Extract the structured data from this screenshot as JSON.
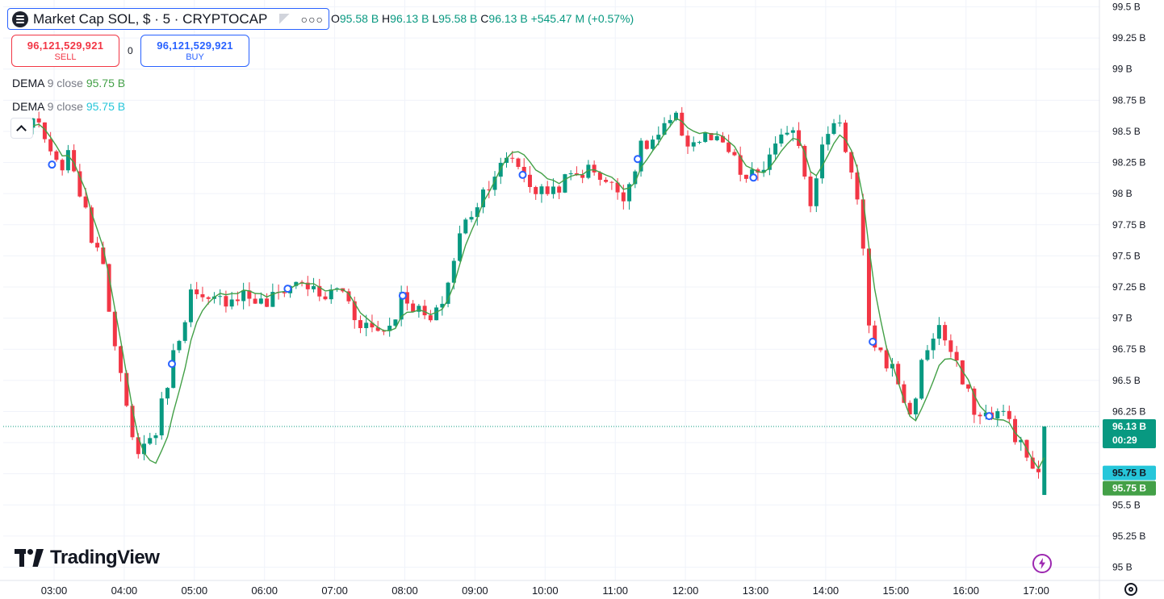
{
  "header": {
    "title": "Market Cap SOL, $ · 5 · CRYPTOCAP",
    "more_label": "○○○"
  },
  "ohlc": {
    "o_label": "O",
    "o_value": "95.58 B",
    "h_label": "H",
    "h_value": "96.13 B",
    "l_label": "L",
    "l_value": "95.58 B",
    "c_label": "C",
    "c_value": "96.13 B",
    "change": "+545.47 M (+0.57%)"
  },
  "trade": {
    "sell_price": "96,121,529,921",
    "sell_label": "SELL",
    "spread": "0",
    "buy_price": "96,121,529,921",
    "buy_label": "BUY"
  },
  "legend": [
    {
      "name": "DEMA",
      "params": "9 close",
      "value": "95.75 B",
      "color": "#43a047"
    },
    {
      "name": "DEMA",
      "params": "9 close",
      "value": "95.75 B",
      "color": "#26c6da"
    }
  ],
  "branding": {
    "logo_text": "TradingView"
  },
  "colors": {
    "up": "#089981",
    "down": "#f23645",
    "dema_line": "#43a047",
    "dema_cyan": "#26c6da",
    "accent": "#2962ff"
  },
  "chart_data": {
    "type": "candlestick",
    "interval": "5",
    "unit": "B",
    "ylim": [
      95,
      99.5
    ],
    "y_ticks": [
      "95 B",
      "95.25 B",
      "95.5 B",
      "95.75 B",
      "96 B",
      "96.25 B",
      "96.5 B",
      "96.75 B",
      "97 B",
      "97.25 B",
      "97.5 B",
      "97.75 B",
      "98 B",
      "98.25 B",
      "98.5 B",
      "98.75 B",
      "99 B",
      "99.25 B",
      "99.5 B"
    ],
    "x_ticks": [
      "03:00",
      "04:00",
      "05:00",
      "06:00",
      "07:00",
      "08:00",
      "09:00",
      "10:00",
      "11:00",
      "12:00",
      "13:00",
      "14:00",
      "15:00",
      "16:00",
      "17:00"
    ],
    "x_range_hours": [
      2.3,
      17.5
    ],
    "last_price": {
      "value": 96.13,
      "label": "96.13 B",
      "countdown": "00:29"
    },
    "dema_labels": [
      {
        "value": 95.75,
        "label": "95.75 B",
        "color": "#26c6da"
      },
      {
        "value": 95.75,
        "label": "95.75 B",
        "color": "#43a047"
      }
    ],
    "event_markers_hours": [
      2.97,
      4.68,
      6.33,
      7.97,
      9.68,
      11.32,
      12.97,
      14.67,
      16.33
    ],
    "anchors": [
      [
        2.45,
        98.5
      ],
      [
        2.8,
        98.55
      ],
      [
        3.0,
        98.2
      ],
      [
        3.25,
        98.3
      ],
      [
        3.5,
        97.7
      ],
      [
        3.7,
        97.5
      ],
      [
        3.85,
        96.8
      ],
      [
        4.0,
        96.35
      ],
      [
        4.12,
        96.0
      ],
      [
        4.25,
        95.95
      ],
      [
        4.45,
        96.1
      ],
      [
        4.7,
        96.7
      ],
      [
        4.95,
        97.2
      ],
      [
        5.15,
        97.1
      ],
      [
        5.4,
        97.15
      ],
      [
        5.7,
        97.2
      ],
      [
        6.0,
        97.1
      ],
      [
        6.3,
        97.25
      ],
      [
        6.55,
        97.3
      ],
      [
        6.8,
        97.15
      ],
      [
        7.1,
        97.25
      ],
      [
        7.3,
        97.0
      ],
      [
        7.6,
        96.9
      ],
      [
        7.8,
        96.95
      ],
      [
        7.97,
        97.2
      ],
      [
        8.2,
        97.05
      ],
      [
        8.4,
        96.95
      ],
      [
        8.6,
        97.25
      ],
      [
        8.8,
        97.7
      ],
      [
        9.0,
        97.9
      ],
      [
        9.25,
        98.15
      ],
      [
        9.55,
        98.3
      ],
      [
        9.7,
        98.15
      ],
      [
        9.9,
        98.0
      ],
      [
        10.15,
        98.05
      ],
      [
        10.4,
        98.15
      ],
      [
        10.7,
        98.2
      ],
      [
        10.95,
        98.05
      ],
      [
        11.15,
        98.0
      ],
      [
        11.35,
        98.35
      ],
      [
        11.6,
        98.45
      ],
      [
        11.85,
        98.6
      ],
      [
        12.05,
        98.4
      ],
      [
        12.3,
        98.45
      ],
      [
        12.6,
        98.35
      ],
      [
        12.85,
        98.1
      ],
      [
        13.1,
        98.2
      ],
      [
        13.35,
        98.4
      ],
      [
        13.5,
        98.6
      ],
      [
        13.65,
        98.35
      ],
      [
        13.8,
        97.9
      ],
      [
        14.0,
        98.5
      ],
      [
        14.2,
        98.6
      ],
      [
        14.35,
        98.2
      ],
      [
        14.5,
        97.8
      ],
      [
        14.6,
        96.9
      ],
      [
        14.8,
        96.7
      ],
      [
        15.0,
        96.55
      ],
      [
        15.2,
        96.2
      ],
      [
        15.4,
        96.7
      ],
      [
        15.6,
        96.95
      ],
      [
        15.8,
        96.7
      ],
      [
        16.0,
        96.4
      ],
      [
        16.2,
        96.2
      ],
      [
        16.4,
        96.25
      ],
      [
        16.6,
        96.2
      ],
      [
        16.75,
        96.0
      ],
      [
        16.9,
        95.85
      ],
      [
        17.05,
        95.7
      ],
      [
        17.12,
        96.13
      ]
    ]
  }
}
